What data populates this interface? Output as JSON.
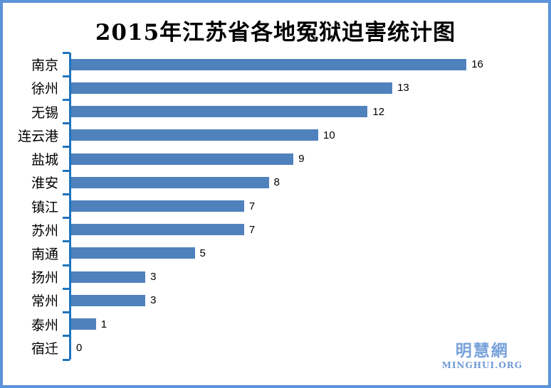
{
  "title": "2015年江苏省各地冤狱迫害统计图",
  "watermark": {
    "cn": "明慧網",
    "en": "MINGHUI.ORG"
  },
  "colors": {
    "bar": "#4f81bd",
    "axis": "#1f74bd",
    "frame": "#5b93d8",
    "watermark_cn": "#78a2db",
    "watermark_en": "#6f9ad3",
    "text": "#000000",
    "background": "#ffffff"
  },
  "chart_data": {
    "type": "bar",
    "orientation": "horizontal",
    "title": "2015年江苏省各地冤狱迫害统计图",
    "categories": [
      "南京",
      "徐州",
      "无锡",
      "连云港",
      "盐城",
      "淮安",
      "镇江",
      "苏州",
      "南通",
      "扬州",
      "常州",
      "泰州",
      "宿迁"
    ],
    "values": [
      16,
      13,
      12,
      10,
      9,
      8,
      7,
      7,
      5,
      3,
      3,
      1,
      0
    ],
    "xlabel": "",
    "ylabel": "",
    "data_labels": true,
    "grid": false,
    "legend": false,
    "sort": "descending"
  }
}
